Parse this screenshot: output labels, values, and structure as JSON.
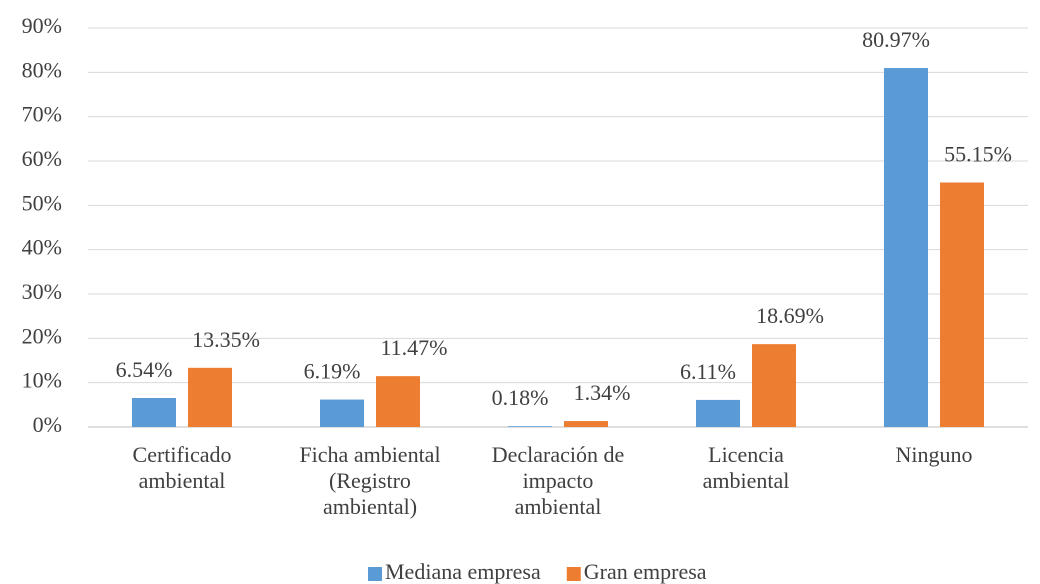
{
  "chart_data": {
    "type": "bar",
    "categories": [
      "Certificado ambiental",
      "Ficha ambiental (Registro ambiental)",
      "Declaración de impacto ambiental",
      "Licencia ambiental",
      "Ninguno"
    ],
    "series": [
      {
        "name": "Mediana empresa",
        "color": "#5b9bd5",
        "values": [
          6.54,
          6.19,
          0.18,
          6.11,
          80.97
        ],
        "value_labels": [
          "6.54%",
          "6.19%",
          "0.18%",
          "6.11%",
          "80.97%"
        ]
      },
      {
        "name": "Gran empresa",
        "color": "#ed7d31",
        "values": [
          13.35,
          11.47,
          1.34,
          18.69,
          55.15
        ],
        "value_labels": [
          "13.35%",
          "11.47%",
          "1.34%",
          "18.69%",
          "55.15%"
        ]
      }
    ],
    "ylim": [
      0,
      90
    ],
    "yticks": [
      {
        "value": 0,
        "label": "0%"
      },
      {
        "value": 10,
        "label": "10%"
      },
      {
        "value": 20,
        "label": "20%"
      },
      {
        "value": 30,
        "label": "30%"
      },
      {
        "value": 40,
        "label": "40%"
      },
      {
        "value": 50,
        "label": "50%"
      },
      {
        "value": 60,
        "label": "60%"
      },
      {
        "value": 70,
        "label": "70%"
      },
      {
        "value": 80,
        "label": "80%"
      },
      {
        "value": 90,
        "label": "90%"
      }
    ],
    "grid": true,
    "legend": "bottom"
  }
}
